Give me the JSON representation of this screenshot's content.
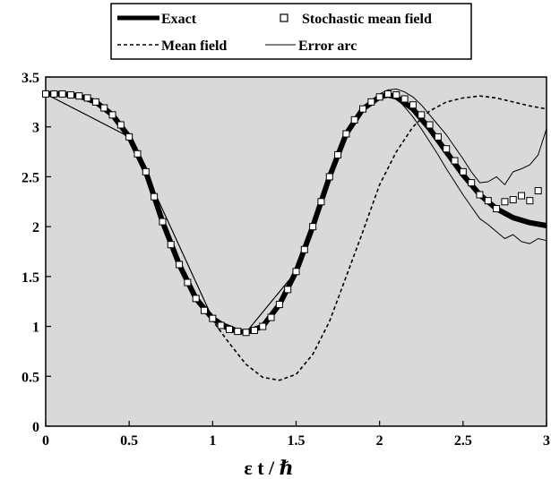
{
  "chart_data": {
    "type": "line",
    "title": "",
    "xlabel": "ε t / ℏ",
    "ylabel": "",
    "xlim": [
      0,
      3
    ],
    "ylim": [
      0,
      3.5
    ],
    "grid": false,
    "legend_position": "top",
    "x_ticks": [
      "0",
      "0.5",
      "1",
      "1.5",
      "2",
      "2.5",
      "3"
    ],
    "y_ticks": [
      "0",
      "0.5",
      "1",
      "1.5",
      "2",
      "2.5",
      "3",
      "3.5"
    ],
    "series": [
      {
        "name": "Exact",
        "style": "thick-solid",
        "points": [
          [
            0,
            3.33
          ],
          [
            0.1,
            3.33
          ],
          [
            0.2,
            3.31
          ],
          [
            0.3,
            3.25
          ],
          [
            0.4,
            3.12
          ],
          [
            0.5,
            2.9
          ],
          [
            0.6,
            2.55
          ],
          [
            0.7,
            2.05
          ],
          [
            0.8,
            1.62
          ],
          [
            0.9,
            1.28
          ],
          [
            1.0,
            1.08
          ],
          [
            1.1,
            0.97
          ],
          [
            1.2,
            0.94
          ],
          [
            1.3,
            1.0
          ],
          [
            1.4,
            1.22
          ],
          [
            1.5,
            1.55
          ],
          [
            1.6,
            2.0
          ],
          [
            1.7,
            2.5
          ],
          [
            1.8,
            2.93
          ],
          [
            1.9,
            3.18
          ],
          [
            2.0,
            3.3
          ],
          [
            2.05,
            3.32
          ],
          [
            2.1,
            3.3
          ],
          [
            2.2,
            3.18
          ],
          [
            2.3,
            2.98
          ],
          [
            2.4,
            2.75
          ],
          [
            2.5,
            2.52
          ],
          [
            2.6,
            2.32
          ],
          [
            2.7,
            2.18
          ],
          [
            2.8,
            2.09
          ],
          [
            2.9,
            2.04
          ],
          [
            3.0,
            2.01
          ]
        ]
      },
      {
        "name": "Stochastic mean field",
        "style": "open-square-markers",
        "points": [
          [
            0,
            3.33
          ],
          [
            0.05,
            3.33
          ],
          [
            0.1,
            3.33
          ],
          [
            0.15,
            3.32
          ],
          [
            0.2,
            3.31
          ],
          [
            0.25,
            3.29
          ],
          [
            0.3,
            3.25
          ],
          [
            0.35,
            3.19
          ],
          [
            0.4,
            3.12
          ],
          [
            0.45,
            3.02
          ],
          [
            0.5,
            2.9
          ],
          [
            0.55,
            2.73
          ],
          [
            0.6,
            2.55
          ],
          [
            0.65,
            2.3
          ],
          [
            0.7,
            2.05
          ],
          [
            0.75,
            1.82
          ],
          [
            0.8,
            1.62
          ],
          [
            0.85,
            1.44
          ],
          [
            0.9,
            1.28
          ],
          [
            0.95,
            1.16
          ],
          [
            1.0,
            1.08
          ],
          [
            1.05,
            1.01
          ],
          [
            1.1,
            0.97
          ],
          [
            1.15,
            0.95
          ],
          [
            1.2,
            0.94
          ],
          [
            1.25,
            0.96
          ],
          [
            1.3,
            1.0
          ],
          [
            1.35,
            1.09
          ],
          [
            1.4,
            1.22
          ],
          [
            1.45,
            1.37
          ],
          [
            1.5,
            1.55
          ],
          [
            1.55,
            1.77
          ],
          [
            1.6,
            2.0
          ],
          [
            1.65,
            2.25
          ],
          [
            1.7,
            2.5
          ],
          [
            1.75,
            2.72
          ],
          [
            1.8,
            2.93
          ],
          [
            1.85,
            3.07
          ],
          [
            1.9,
            3.18
          ],
          [
            1.95,
            3.25
          ],
          [
            2.0,
            3.3
          ],
          [
            2.05,
            3.33
          ],
          [
            2.1,
            3.32
          ],
          [
            2.15,
            3.28
          ],
          [
            2.2,
            3.22
          ],
          [
            2.25,
            3.12
          ],
          [
            2.3,
            3.02
          ],
          [
            2.35,
            2.9
          ],
          [
            2.4,
            2.78
          ],
          [
            2.45,
            2.66
          ],
          [
            2.5,
            2.55
          ],
          [
            2.55,
            2.44
          ],
          [
            2.6,
            2.32
          ],
          [
            2.65,
            2.26
          ],
          [
            2.7,
            2.18
          ],
          [
            2.75,
            2.25
          ],
          [
            2.8,
            2.27
          ],
          [
            2.85,
            2.31
          ],
          [
            2.9,
            2.26
          ],
          [
            2.95,
            2.36
          ]
        ]
      },
      {
        "name": "Mean field",
        "style": "dashed",
        "points": [
          [
            0,
            3.33
          ],
          [
            0.1,
            3.33
          ],
          [
            0.2,
            3.31
          ],
          [
            0.3,
            3.25
          ],
          [
            0.4,
            3.12
          ],
          [
            0.5,
            2.9
          ],
          [
            0.6,
            2.55
          ],
          [
            0.7,
            2.05
          ],
          [
            0.8,
            1.62
          ],
          [
            0.9,
            1.28
          ],
          [
            1.0,
            1.06
          ],
          [
            1.1,
            0.83
          ],
          [
            1.2,
            0.62
          ],
          [
            1.3,
            0.49
          ],
          [
            1.4,
            0.46
          ],
          [
            1.5,
            0.52
          ],
          [
            1.6,
            0.72
          ],
          [
            1.7,
            1.05
          ],
          [
            1.8,
            1.5
          ],
          [
            1.9,
            1.95
          ],
          [
            2.0,
            2.42
          ],
          [
            2.1,
            2.75
          ],
          [
            2.2,
            3.0
          ],
          [
            2.3,
            3.16
          ],
          [
            2.4,
            3.25
          ],
          [
            2.5,
            3.29
          ],
          [
            2.6,
            3.31
          ],
          [
            2.7,
            3.29
          ],
          [
            2.8,
            3.25
          ],
          [
            2.9,
            3.21
          ],
          [
            3.0,
            3.18
          ]
        ]
      },
      {
        "name": "Error arc",
        "style": "thin-solid",
        "points": [
          [
            0,
            3.33
          ],
          [
            0.5,
            2.9
          ],
          [
            1.0,
            1.08
          ],
          [
            1.2,
            0.94
          ],
          [
            1.5,
            1.55
          ],
          [
            1.8,
            2.93
          ],
          [
            1.9,
            3.2
          ],
          [
            2.0,
            3.33
          ],
          [
            2.05,
            3.37
          ],
          [
            2.1,
            3.38
          ],
          [
            2.15,
            3.35
          ],
          [
            2.2,
            3.3
          ],
          [
            2.25,
            3.22
          ],
          [
            2.3,
            3.12
          ],
          [
            2.35,
            3.02
          ],
          [
            2.4,
            2.92
          ],
          [
            2.45,
            2.8
          ],
          [
            2.5,
            2.68
          ],
          [
            2.55,
            2.55
          ],
          [
            2.6,
            2.44
          ],
          [
            2.65,
            2.45
          ],
          [
            2.7,
            2.5
          ],
          [
            2.75,
            2.42
          ],
          [
            2.8,
            2.55
          ],
          [
            2.85,
            2.58
          ],
          [
            2.9,
            2.62
          ],
          [
            2.95,
            2.72
          ],
          [
            3.0,
            2.98
          ]
        ]
      },
      {
        "name": "",
        "style": "thin-solid",
        "points": [
          [
            0,
            3.33
          ],
          [
            0.5,
            2.9
          ],
          [
            1.0,
            1.08
          ],
          [
            1.2,
            0.94
          ],
          [
            1.5,
            1.55
          ],
          [
            1.8,
            2.93
          ],
          [
            1.9,
            3.17
          ],
          [
            2.0,
            3.28
          ],
          [
            2.05,
            3.3
          ],
          [
            2.1,
            3.29
          ],
          [
            2.15,
            3.2
          ],
          [
            2.2,
            3.1
          ],
          [
            2.25,
            2.98
          ],
          [
            2.3,
            2.85
          ],
          [
            2.35,
            2.72
          ],
          [
            2.4,
            2.58
          ],
          [
            2.45,
            2.45
          ],
          [
            2.5,
            2.32
          ],
          [
            2.55,
            2.2
          ],
          [
            2.6,
            2.08
          ],
          [
            2.65,
            2.02
          ],
          [
            2.7,
            1.95
          ],
          [
            2.75,
            1.88
          ],
          [
            2.8,
            1.92
          ],
          [
            2.85,
            1.85
          ],
          [
            2.9,
            1.83
          ],
          [
            2.95,
            1.88
          ],
          [
            3.0,
            1.86
          ]
        ]
      }
    ]
  }
}
